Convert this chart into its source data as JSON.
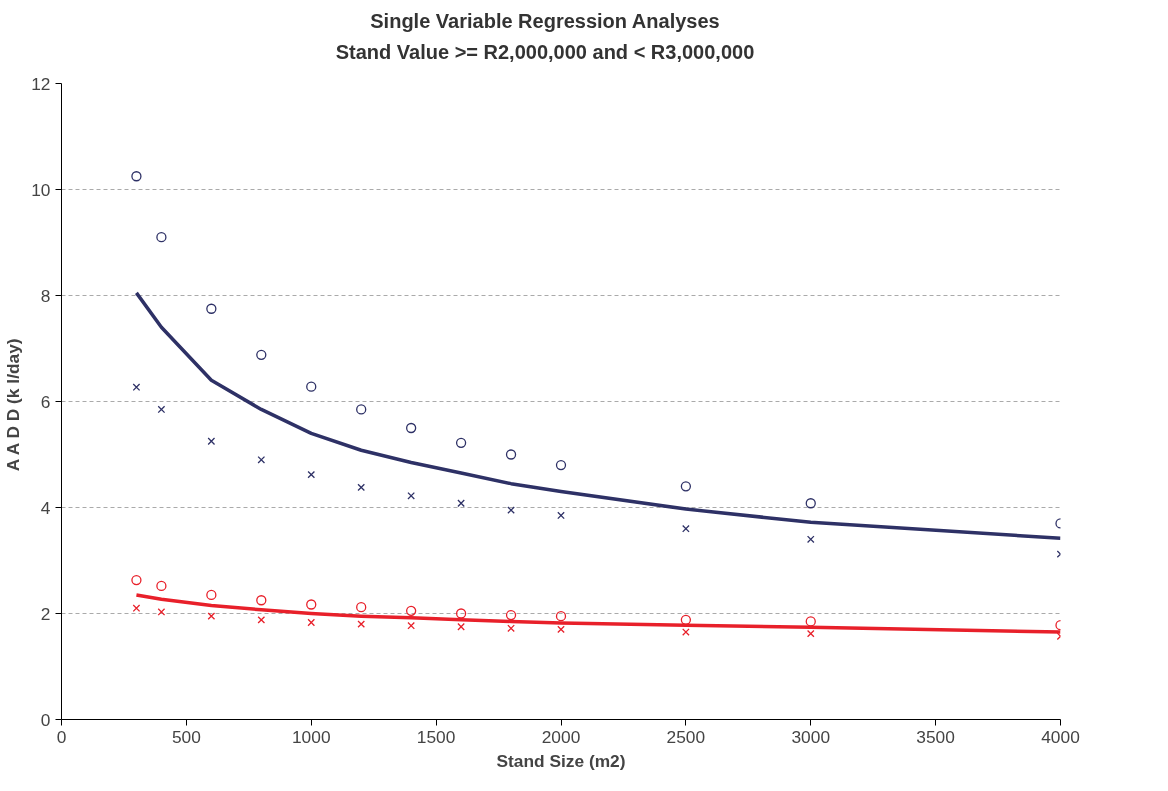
{
  "chart_data": {
    "type": "scatter",
    "title": "Single Variable  Regression Analyses\nStand Value >= R2,000,000 and < R3,000,000",
    "xlabel": "Stand Size (m2)",
    "ylabel": "A A D D  (k l/day)",
    "x": [
      300,
      400,
      600,
      800,
      1000,
      1200,
      1400,
      1600,
      1800,
      2000,
      2500,
      3000,
      4000
    ],
    "series": [
      {
        "marker": "circle",
        "color": "#2e3166",
        "values": [
          10.25,
          9.1,
          7.75,
          6.88,
          6.28,
          5.85,
          5.5,
          5.22,
          5.0,
          4.8,
          4.4,
          4.08,
          3.7
        ]
      },
      {
        "marker": "cross",
        "color": "#2e3166",
        "values": [
          6.27,
          5.85,
          5.25,
          4.9,
          4.62,
          4.38,
          4.22,
          4.08,
          3.95,
          3.85,
          3.6,
          3.4,
          3.12
        ]
      },
      {
        "type": "line",
        "marker": "none",
        "color": "#2e3166",
        "values": [
          8.05,
          7.4,
          6.4,
          5.85,
          5.4,
          5.08,
          4.85,
          4.65,
          4.45,
          4.3,
          3.97,
          3.72,
          3.42
        ]
      },
      {
        "marker": "circle",
        "color": "#e8202a",
        "values": [
          2.63,
          2.52,
          2.35,
          2.25,
          2.17,
          2.12,
          2.05,
          2.0,
          1.97,
          1.95,
          1.88,
          1.85,
          1.78
        ]
      },
      {
        "marker": "cross",
        "color": "#e8202a",
        "values": [
          2.1,
          2.03,
          1.95,
          1.88,
          1.83,
          1.8,
          1.77,
          1.75,
          1.72,
          1.7,
          1.65,
          1.62,
          1.57
        ]
      },
      {
        "type": "line",
        "marker": "none",
        "color": "#e8202a",
        "values": [
          2.35,
          2.27,
          2.15,
          2.07,
          2.0,
          1.95,
          1.92,
          1.88,
          1.85,
          1.82,
          1.78,
          1.74,
          1.65
        ]
      }
    ],
    "xlim": [
      0,
      4000
    ],
    "xticks": [
      0,
      500,
      1000,
      1500,
      2000,
      2500,
      3000,
      3500,
      4000
    ],
    "ylim": [
      0,
      12
    ],
    "yticks": [
      0,
      2,
      4,
      6,
      8,
      10,
      12
    ],
    "grid": "y",
    "line_style": "solid"
  }
}
